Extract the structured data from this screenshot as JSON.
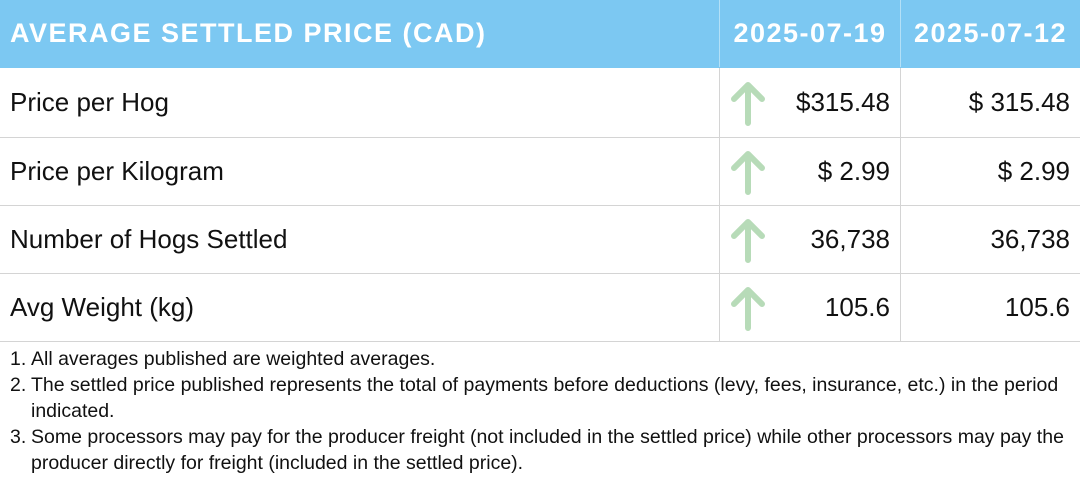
{
  "table": {
    "header": {
      "title": "AVERAGE SETTLED PRICE (CAD)",
      "col_current": "2025-07-19",
      "col_previous": "2025-07-12"
    },
    "rows": [
      {
        "label": "Price per Hog",
        "current": "$315.48",
        "previous": "$ 315.48",
        "trend_icon": "arrow-up-icon"
      },
      {
        "label": "Price per Kilogram",
        "current": "$ 2.99",
        "previous": "$ 2.99",
        "trend_icon": "arrow-up-icon"
      },
      {
        "label": "Number of Hogs Settled",
        "current": "36,738",
        "previous": "36,738",
        "trend_icon": "arrow-up-icon"
      },
      {
        "label": "Avg Weight (kg)",
        "current": "105.6",
        "previous": "105.6",
        "trend_icon": "arrow-up-icon"
      }
    ]
  },
  "notes": [
    {
      "num": "1.",
      "text": "All averages published are weighted averages."
    },
    {
      "num": "2.",
      "text": "The settled price published represents the total of payments before deductions (levy, fees, insurance, etc.) in the period indicated."
    },
    {
      "num": "3.",
      "text": "Some processors may pay for the producer freight (not included in the settled price) while other processors may pay the producer directly for freight (included in the settled price)."
    }
  ],
  "colors": {
    "header_bg": "#7cc8f2",
    "header_text": "#ffffff",
    "arrow_up": "#b7dbb8",
    "grid": "#d4d4d4"
  }
}
